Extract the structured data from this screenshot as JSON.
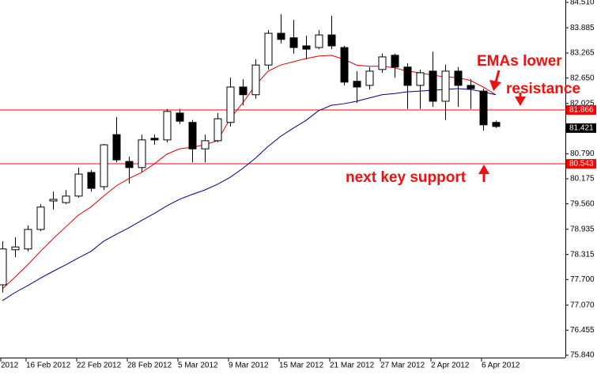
{
  "chart_data": {
    "type": "candlestick",
    "categories": [
      "2012",
      null,
      "16 Feb 2012",
      null,
      null,
      null,
      "22 Feb 2012",
      null,
      null,
      null,
      "28 Feb 2012",
      null,
      null,
      null,
      "5 Mar 2012",
      null,
      null,
      null,
      "9 Mar 2012",
      null,
      null,
      null,
      "15 Mar 2012",
      null,
      null,
      null,
      "21 Mar 2012",
      null,
      null,
      null,
      "27 Mar 2012",
      null,
      null,
      null,
      "2 Apr 2012",
      null,
      null,
      null,
      "6 Apr 2012",
      null
    ],
    "open": [
      77.57,
      78.43,
      78.45,
      78.93,
      79.63,
      79.59,
      79.75,
      80.33,
      79.98,
      81.26,
      80.6,
      80.45,
      81.17,
      81.13,
      81.79,
      81.56,
      80.91,
      81.11,
      81.56,
      82.43,
      82.24,
      82.97,
      83.75,
      83.64,
      83.44,
      83.4,
      83.71,
      83.4,
      82.57,
      82.47,
      82.86,
      83.21,
      82.92,
      82.47,
      82.82,
      82.08,
      82.82,
      82.47,
      82.33,
      81.56
    ],
    "high": [
      78.64,
      78.74,
      79.03,
      79.55,
      79.86,
      79.9,
      80.45,
      80.39,
      81.03,
      81.69,
      80.72,
      81.26,
      81.26,
      81.89,
      81.89,
      81.62,
      81.26,
      81.79,
      82.66,
      82.62,
      83.11,
      83.83,
      84.22,
      84.08,
      83.69,
      83.83,
      84.18,
      83.44,
      82.82,
      82.92,
      83.25,
      83.25,
      83.01,
      82.86,
      83.3,
      82.98,
      82.92,
      82.62,
      82.39,
      81.6
    ],
    "low": [
      77.38,
      78.25,
      78.39,
      78.89,
      79.42,
      79.55,
      79.71,
      79.86,
      79.9,
      80.58,
      80.06,
      80.33,
      81.01,
      81.07,
      81.52,
      80.58,
      80.58,
      81.07,
      81.46,
      81.98,
      82.14,
      82.86,
      83.5,
      83.25,
      83.11,
      83.36,
      83.36,
      82.47,
      82.04,
      82.37,
      82.78,
      82.66,
      81.89,
      81.89,
      81.94,
      81.62,
      81.94,
      81.89,
      81.36,
      81.42
    ],
    "close": [
      78.45,
      78.5,
      78.93,
      79.48,
      79.67,
      79.75,
      80.29,
      79.94,
      81.01,
      80.64,
      80.45,
      81.13,
      81.13,
      81.83,
      81.59,
      80.91,
      81.11,
      81.65,
      82.43,
      82.24,
      82.97,
      83.75,
      83.6,
      83.4,
      83.36,
      83.71,
      83.44,
      82.55,
      82.43,
      82.82,
      83.17,
      82.92,
      82.47,
      82.78,
      82.08,
      82.82,
      82.47,
      82.39,
      81.5,
      81.46
    ],
    "ema_lines": [
      {
        "color": "#e00000",
        "values": [
          77.47,
          77.76,
          78.06,
          78.39,
          78.7,
          78.99,
          79.28,
          79.48,
          79.75,
          80.0,
          80.18,
          80.33,
          80.54,
          80.78,
          80.91,
          80.95,
          81.01,
          81.11,
          81.65,
          82.04,
          82.47,
          82.82,
          82.97,
          83.05,
          83.13,
          83.19,
          83.21,
          83.11,
          82.97,
          82.94,
          82.94,
          82.9,
          82.82,
          82.78,
          82.72,
          82.68,
          82.66,
          82.59,
          82.43,
          82.24
        ]
      },
      {
        "color": "#000080",
        "values": [
          77.18,
          77.38,
          77.55,
          77.73,
          77.9,
          78.06,
          78.23,
          78.39,
          78.64,
          78.81,
          78.97,
          79.15,
          79.32,
          79.51,
          79.67,
          79.79,
          79.9,
          80.04,
          80.21,
          80.43,
          80.68,
          80.97,
          81.22,
          81.42,
          81.61,
          81.85,
          81.98,
          82.02,
          82.08,
          82.16,
          82.24,
          82.27,
          82.31,
          82.33,
          82.35,
          82.37,
          82.39,
          82.37,
          82.31,
          82.24
        ]
      }
    ],
    "hlines": [
      {
        "value": 81.866,
        "color": "#ff0000"
      },
      {
        "value": 80.543,
        "color": "#ff0000"
      }
    ],
    "last_price": 81.421,
    "annotations": [
      "EMAs lower",
      "resistance",
      "next key support"
    ],
    "annotation_color": "#ee1111",
    "ylim": [
      75.781,
      84.568
    ],
    "yticks": [
      {
        "value": 84.51,
        "label": "84.510"
      },
      83.885,
      83.265,
      {
        "value": 82.65,
        "label": "82.650"
      },
      82.025,
      {
        "value": 80.79,
        "label": "80.790"
      },
      80.175,
      {
        "value": 79.56,
        "label": "79.560"
      },
      78.935,
      78.315,
      {
        "value": 77.7,
        "label": "77.700"
      },
      {
        "value": 77.07,
        "label": "77.070"
      },
      76.455,
      {
        "value": 75.84,
        "label": "75.840"
      }
    ]
  }
}
